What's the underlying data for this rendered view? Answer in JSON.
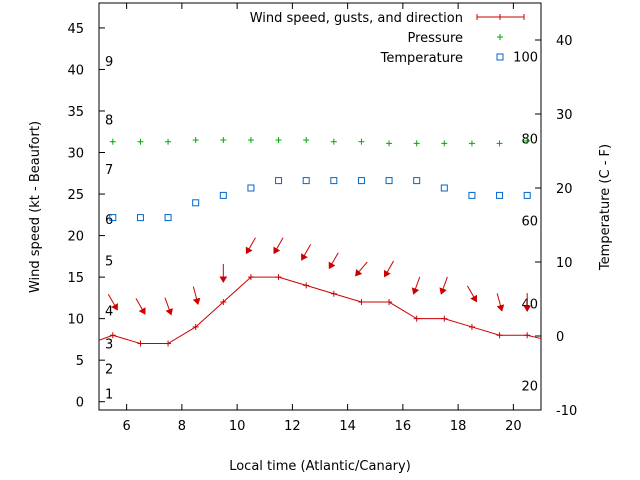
{
  "chart_data": {
    "type": "line",
    "xlabel": "Local time (Atlantic/Canary)",
    "ylabel": "Wind speed (kt - Beaufort)",
    "y2label": "Temperature (C - F)",
    "xlim": [
      5,
      21
    ],
    "ylim": [
      -1,
      48
    ],
    "y2lim": [
      -10,
      45
    ],
    "xticks": [
      6,
      8,
      10,
      12,
      14,
      16,
      18,
      20
    ],
    "yticks": [
      0,
      5,
      10,
      15,
      20,
      25,
      30,
      35,
      40,
      45
    ],
    "y2ticks": [
      -10,
      0,
      10,
      20,
      30,
      40
    ],
    "beaufort_labels": [
      {
        "label": "1",
        "y": 1
      },
      {
        "label": "2",
        "y": 4
      },
      {
        "label": "3",
        "y": 7
      },
      {
        "label": "4",
        "y": 11
      },
      {
        "label": "5",
        "y": 17
      },
      {
        "label": "6",
        "y": 22
      },
      {
        "label": "7",
        "y": 28
      },
      {
        "label": "8",
        "y": 34
      },
      {
        "label": "9",
        "y": 41
      }
    ],
    "fahrenheit_labels": [
      {
        "label": "20",
        "temp": -6.7
      },
      {
        "label": "40",
        "temp": 4.4
      },
      {
        "label": "60",
        "temp": 15.6
      },
      {
        "label": "80",
        "temp": 26.7
      },
      {
        "label": "100",
        "temp": 37.8
      }
    ],
    "legend": [
      {
        "label": "Wind speed, gusts, and direction",
        "color": "#cc0000",
        "symbol": "line-plus"
      },
      {
        "label": "Pressure",
        "color": "#00aa00",
        "symbol": "plus"
      },
      {
        "label": "Temperature",
        "color": "#0066cc",
        "symbol": "square"
      }
    ],
    "series": [
      {
        "name": "Wind speed",
        "color": "#cc0000",
        "x": [
          5.5,
          6.5,
          7.5,
          8.5,
          9.5,
          10.5,
          11.5,
          12.5,
          13.5,
          14.5,
          15.5,
          16.5,
          17.5,
          18.5,
          19.5,
          20.5
        ],
        "y": [
          8,
          7,
          7,
          9,
          12,
          15,
          15,
          14,
          13,
          12,
          12,
          10,
          10,
          9,
          8,
          8
        ],
        "line_extends": {
          "start": [
            5,
            7.4
          ],
          "end": [
            21,
            7.6
          ]
        }
      },
      {
        "name": "Pressure",
        "color": "#00aa00",
        "x": [
          5.5,
          6.5,
          7.5,
          8.5,
          9.5,
          10.5,
          11.5,
          12.5,
          13.5,
          14.5,
          15.5,
          16.5,
          17.5,
          18.5,
          19.5,
          20.5
        ],
        "y": [
          31.3,
          31.3,
          31.3,
          31.5,
          31.5,
          31.5,
          31.5,
          31.5,
          31.3,
          31.3,
          31.1,
          31.1,
          31.1,
          31.1,
          31.1,
          31.4
        ]
      },
      {
        "name": "Temperature",
        "color": "#0066cc",
        "axis": "y2",
        "x": [
          5.5,
          6.5,
          7.5,
          8.5,
          9.5,
          10.5,
          11.5,
          12.5,
          13.5,
          14.5,
          15.5,
          16.5,
          17.5,
          18.5,
          19.5,
          20.5
        ],
        "y": [
          16,
          16,
          16,
          18,
          19,
          20,
          21,
          21,
          21,
          21,
          21,
          21,
          20,
          19,
          19,
          19
        ]
      },
      {
        "name": "Wind direction",
        "color": "#cc0000",
        "type": "arrows",
        "x": [
          5.5,
          6.5,
          7.5,
          8.5,
          9.5,
          10.5,
          11.5,
          12.5,
          13.5,
          14.5,
          15.5,
          16.5,
          17.5,
          18.5,
          19.5,
          20.5
        ],
        "y": [
          12,
          11.5,
          11.5,
          12.8,
          15.5,
          18.8,
          18.8,
          18,
          17,
          16,
          16,
          14,
          14,
          13,
          12,
          12
        ],
        "dir_deg": [
          330,
          330,
          340,
          345,
          360,
          30,
          30,
          30,
          30,
          40,
          30,
          20,
          20,
          330,
          345,
          360
        ]
      }
    ]
  }
}
